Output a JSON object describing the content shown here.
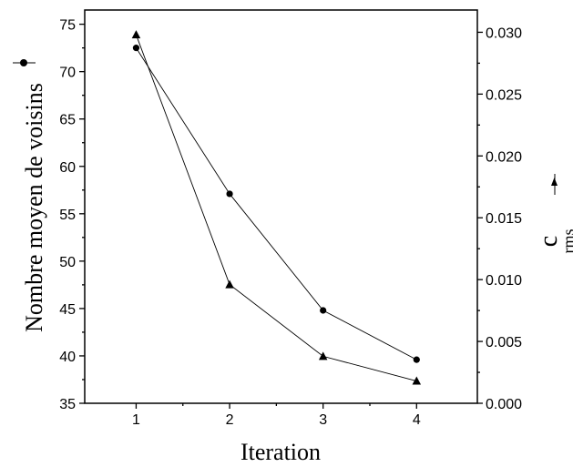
{
  "chart_data": {
    "type": "line",
    "xlabel": "Iteration",
    "ylabel_left": "Nombre moyen de voisins",
    "ylabel_right_main": "c",
    "ylabel_right_sub": "rms",
    "x": [
      1,
      2,
      3,
      4
    ],
    "xlim": [
      0.45,
      4.65
    ],
    "x_ticks": [
      "1",
      "2",
      "3",
      "4"
    ],
    "ylim_left": [
      35,
      76.5
    ],
    "y_ticks_left": [
      "35",
      "40",
      "45",
      "50",
      "55",
      "60",
      "65",
      "70",
      "75"
    ],
    "ylim_right": [
      0,
      0.0318
    ],
    "y_ticks_right": [
      "0.000",
      "0.005",
      "0.010",
      "0.015",
      "0.020",
      "0.025",
      "0.030"
    ],
    "grid": false,
    "series": [
      {
        "marker": "circle",
        "axis": "left",
        "values": [
          72.5,
          57.1,
          44.8,
          39.6
        ]
      },
      {
        "marker": "triangle",
        "axis": "right",
        "values": [
          0.0298,
          0.0096,
          0.0038,
          0.0018
        ]
      }
    ]
  }
}
